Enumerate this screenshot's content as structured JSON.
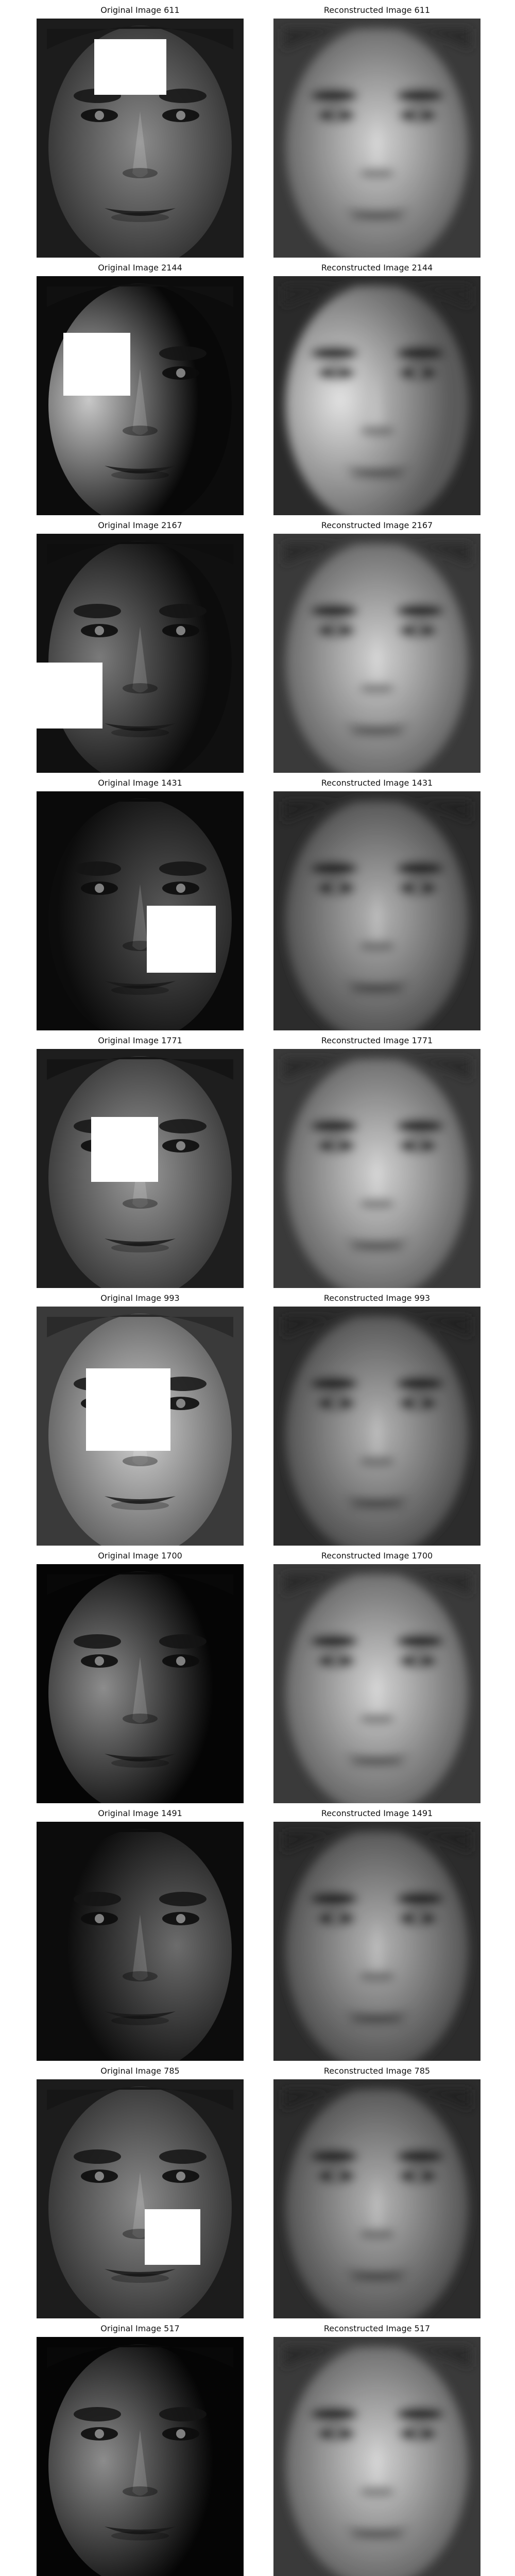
{
  "rows": [
    {
      "original": {
        "title": "Original Image 611",
        "lighting": "frontal-dim",
        "mask": true
      },
      "reconstructed": {
        "title": "Reconstructed Image 611",
        "lighting": "frontal-bright"
      }
    },
    {
      "original": {
        "title": "Original Image 2144",
        "lighting": "left-strong",
        "mask": true
      },
      "reconstructed": {
        "title": "Reconstructed Image 2144",
        "lighting": "left-bright"
      }
    },
    {
      "original": {
        "title": "Original Image 2167",
        "lighting": "left-dim",
        "mask": true
      },
      "reconstructed": {
        "title": "Reconstructed Image 2167",
        "lighting": "frontal-bright"
      }
    },
    {
      "original": {
        "title": "Original Image 1431",
        "lighting": "dark",
        "mask": true
      },
      "reconstructed": {
        "title": "Reconstructed Image 1431",
        "lighting": "frontal-mid"
      }
    },
    {
      "original": {
        "title": "Original Image 1771",
        "lighting": "frontal",
        "mask": true
      },
      "reconstructed": {
        "title": "Reconstructed Image 1771",
        "lighting": "frontal-bright"
      }
    },
    {
      "original": {
        "title": "Original Image 993",
        "lighting": "frontal-bright",
        "mask": true
      },
      "reconstructed": {
        "title": "Reconstructed Image 993",
        "lighting": "frontal-mid"
      }
    },
    {
      "original": {
        "title": "Original Image 1700",
        "lighting": "left-dark",
        "mask": false
      },
      "reconstructed": {
        "title": "Reconstructed Image 1700",
        "lighting": "frontal-bright"
      }
    },
    {
      "original": {
        "title": "Original Image 1491",
        "lighting": "right-dim",
        "mask": false
      },
      "reconstructed": {
        "title": "Reconstructed Image 1491",
        "lighting": "frontal-mid"
      }
    },
    {
      "original": {
        "title": "Original Image 785",
        "lighting": "frontal-dim",
        "mask": true
      },
      "reconstructed": {
        "title": "Reconstructed Image 785",
        "lighting": "frontal-mid"
      }
    },
    {
      "original": {
        "title": "Original Image 517",
        "lighting": "left-dark",
        "mask": false
      },
      "reconstructed": {
        "title": "Reconstructed Image 517",
        "lighting": "frontal-bright"
      }
    }
  ]
}
